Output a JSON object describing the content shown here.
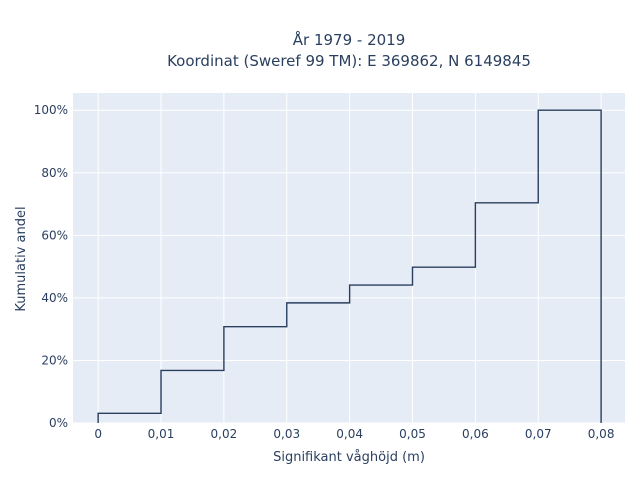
{
  "chart_data": {
    "type": "line",
    "subtype": "step-cumulative-histogram",
    "title_line1": "År 1979 - 2019",
    "title_line2": "Koordinat (Sweref 99 TM): E 369862, N 6149845",
    "xlabel": "Signifikant våghöjd (m)",
    "ylabel": "Kumulativ andel",
    "x_ticks": [
      {
        "value": 0,
        "label": "0"
      },
      {
        "value": 0.01,
        "label": "0,01"
      },
      {
        "value": 0.02,
        "label": "0,02"
      },
      {
        "value": 0.03,
        "label": "0,03"
      },
      {
        "value": 0.04,
        "label": "0,04"
      },
      {
        "value": 0.05,
        "label": "0,05"
      },
      {
        "value": 0.06,
        "label": "0,06"
      },
      {
        "value": 0.07,
        "label": "0,07"
      },
      {
        "value": 0.08,
        "label": "0,08"
      }
    ],
    "y_ticks": [
      {
        "value": 0,
        "label": "0%"
      },
      {
        "value": 0.2,
        "label": "20%"
      },
      {
        "value": 0.4,
        "label": "40%"
      },
      {
        "value": 0.6,
        "label": "60%"
      },
      {
        "value": 0.8,
        "label": "80%"
      },
      {
        "value": 1.0,
        "label": "100%"
      }
    ],
    "xlim": [
      -0.004,
      0.0838
    ],
    "ylim": [
      0,
      1.055
    ],
    "grid": true,
    "bins": [
      {
        "start": 0.0,
        "end": 0.01,
        "value": 0.031
      },
      {
        "start": 0.01,
        "end": 0.02,
        "value": 0.168
      },
      {
        "start": 0.02,
        "end": 0.03,
        "value": 0.308
      },
      {
        "start": 0.03,
        "end": 0.04,
        "value": 0.384
      },
      {
        "start": 0.04,
        "end": 0.05,
        "value": 0.441
      },
      {
        "start": 0.05,
        "end": 0.06,
        "value": 0.498
      },
      {
        "start": 0.06,
        "end": 0.07,
        "value": 0.704
      },
      {
        "start": 0.07,
        "end": 0.08,
        "value": 1.0
      }
    ],
    "colors": {
      "plot_bg": "#e5ecf6",
      "grid": "#ffffff",
      "line": "#2a3f5f",
      "text": "#2a3f5f"
    }
  }
}
